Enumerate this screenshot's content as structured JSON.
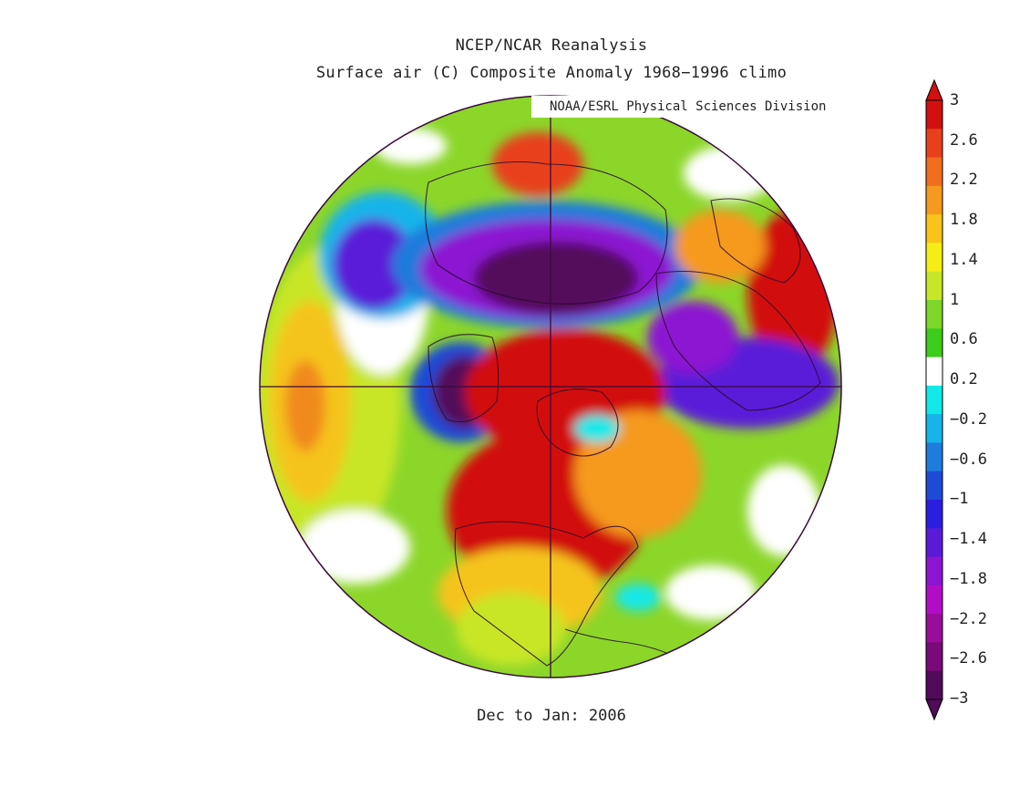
{
  "header": {
    "title": "NCEP/NCAR Reanalysis",
    "subtitle": "Surface air (C) Composite Anomaly 1968−1996 climo",
    "credit": "NOAA/ESRL Physical Sciences Division"
  },
  "footer": {
    "period": "Dec to Jan: 2006"
  },
  "colorbar": {
    "labels": [
      "3",
      "2.6",
      "2.2",
      "1.8",
      "1.4",
      "1",
      "0.6",
      "0.2",
      "−0.2",
      "−0.6",
      "−1",
      "−1.4",
      "−1.8",
      "−2.2",
      "−2.6",
      "−3"
    ],
    "colors": [
      "#d21010",
      "#e8401c",
      "#f06e1e",
      "#f59a1e",
      "#f8c41a",
      "#f5ee14",
      "#c8e628",
      "#7dd62a",
      "#3ccc1a",
      "#ffffff",
      "#12e8e8",
      "#16b4ea",
      "#1e7cdc",
      "#1e4ad8",
      "#2a1ee0",
      "#5a1ad8",
      "#8c14d2",
      "#b20cc8",
      "#9a0c9a",
      "#7a0a7a",
      "#520a5a"
    ],
    "max_color": "#d21010",
    "min_color": "#520a5a"
  },
  "map": {
    "projection": "polar-stereographic",
    "region": "Northern Hemisphere",
    "outline_color": "#3a0a3a"
  }
}
